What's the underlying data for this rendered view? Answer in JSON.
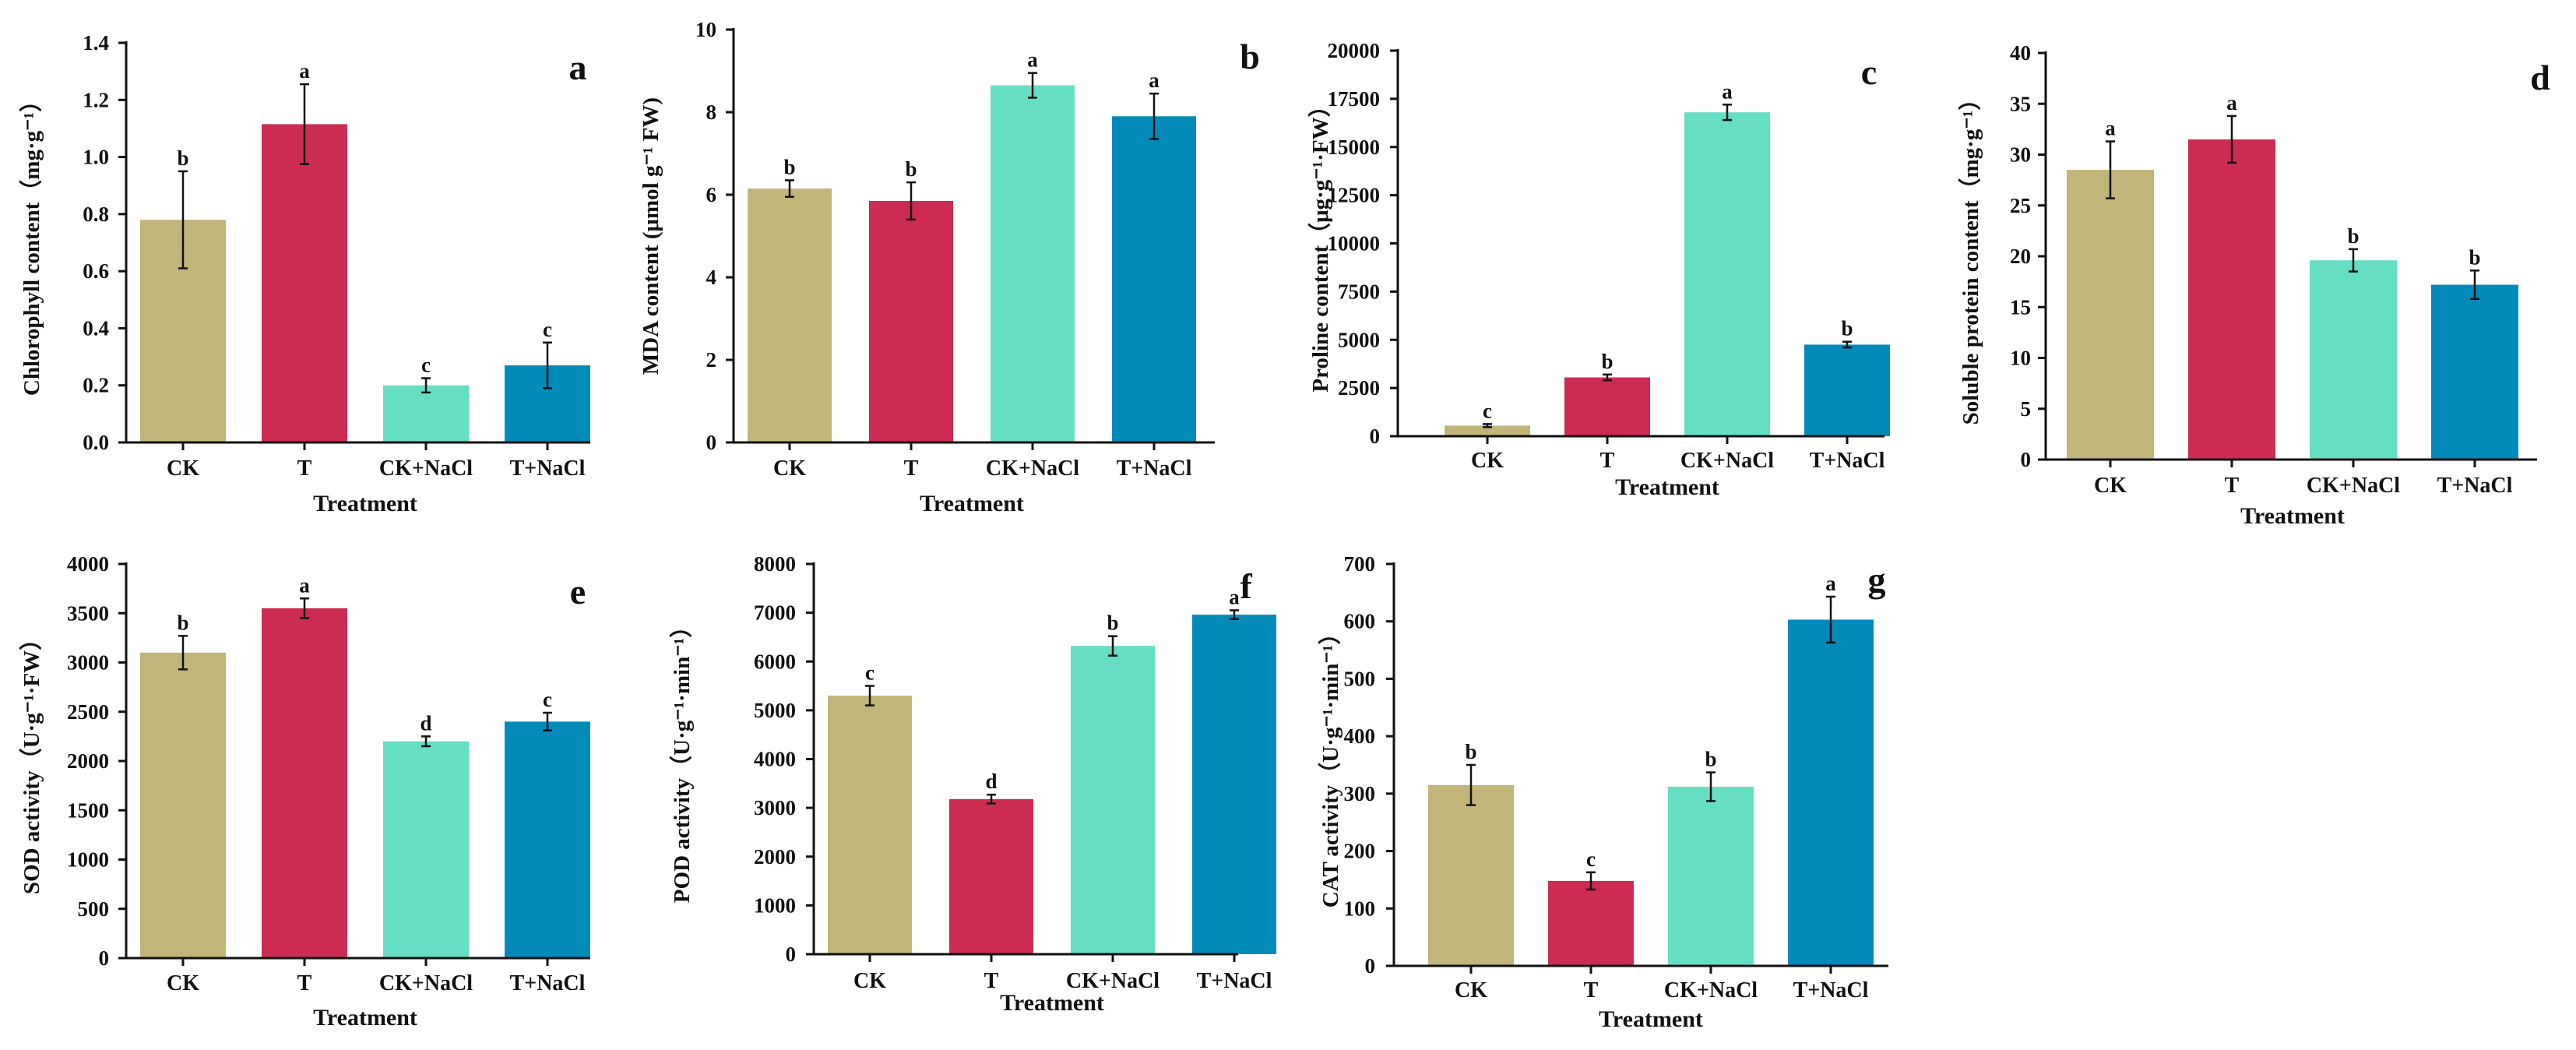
{
  "colors": {
    "CK": "#c2b57a",
    "T": "#cc2b52",
    "CK+NaCl": "#66dec4",
    "T+NaCl": "#038ab9"
  },
  "chart_data": [
    {
      "id": "a",
      "type": "bar",
      "panel_label": "a",
      "categories": [
        "CK",
        "T",
        "CK+NaCl",
        "T+NaCl"
      ],
      "values": [
        0.78,
        1.115,
        0.2,
        0.27
      ],
      "errors": [
        0.17,
        0.14,
        0.025,
        0.08
      ],
      "letters": [
        "b",
        "a",
        "c",
        "c"
      ],
      "xlabel": "Treatment",
      "ylabel": "Chlorophyll content（mg·g⁻¹）",
      "ylim": [
        0,
        1.4
      ],
      "yticks": [
        "0.0",
        "0.2",
        "0.4",
        "0.6",
        "0.8",
        "1.0",
        "1.2",
        "1.4"
      ]
    },
    {
      "id": "b",
      "type": "bar",
      "panel_label": "b",
      "categories": [
        "CK",
        "T",
        "CK+NaCl",
        "T+NaCl"
      ],
      "values": [
        6.15,
        5.85,
        8.65,
        7.9
      ],
      "errors": [
        0.2,
        0.45,
        0.3,
        0.55
      ],
      "letters": [
        "b",
        "b",
        "a",
        "a"
      ],
      "xlabel": "Treatment",
      "ylabel": "MDA content (μmol g⁻¹ FW)",
      "ylim": [
        0,
        10
      ],
      "yticks": [
        "0",
        "2",
        "4",
        "6",
        "8",
        "10"
      ]
    },
    {
      "id": "c",
      "type": "bar",
      "panel_label": "c",
      "categories": [
        "CK",
        "T",
        "CK+NaCl",
        "T+NaCl"
      ],
      "values": [
        550,
        3050,
        16800,
        4750
      ],
      "errors": [
        80,
        150,
        400,
        150
      ],
      "letters": [
        "c",
        "b",
        "a",
        "b"
      ],
      "xlabel": "Treatment",
      "ylabel": "Proline content（μg·g⁻¹·FW）",
      "ylim": [
        0,
        20000
      ],
      "yticks": [
        "0",
        "2500",
        "5000",
        "7500",
        "10000",
        "12500",
        "15000",
        "17500",
        "20000"
      ]
    },
    {
      "id": "d",
      "type": "bar",
      "panel_label": "d",
      "categories": [
        "CK",
        "T",
        "CK+NaCl",
        "T+NaCl"
      ],
      "values": [
        28.5,
        31.5,
        19.6,
        17.2
      ],
      "errors": [
        2.8,
        2.3,
        1.1,
        1.4
      ],
      "letters": [
        "a",
        "a",
        "b",
        "b"
      ],
      "xlabel": "Treatment",
      "ylabel": "Soluble protein content（mg·g⁻¹）",
      "ylim": [
        0,
        40
      ],
      "yticks": [
        "0",
        "5",
        "10",
        "15",
        "20",
        "25",
        "30",
        "35",
        "40"
      ]
    },
    {
      "id": "e",
      "type": "bar",
      "panel_label": "e",
      "categories": [
        "CK",
        "T",
        "CK+NaCl",
        "T+NaCl"
      ],
      "values": [
        3100,
        3550,
        2200,
        2400
      ],
      "errors": [
        170,
        100,
        50,
        90
      ],
      "letters": [
        "b",
        "a",
        "d",
        "c"
      ],
      "xlabel": "Treatment",
      "ylabel": "SOD activity（U·g⁻¹·FW）",
      "ylim": [
        0,
        4000
      ],
      "yticks": [
        "0",
        "500",
        "1000",
        "1500",
        "2000",
        "2500",
        "3000",
        "3500",
        "4000"
      ]
    },
    {
      "id": "f",
      "type": "bar",
      "panel_label": "f",
      "categories": [
        "CK",
        "T",
        "CK+NaCl",
        "T+NaCl"
      ],
      "values": [
        5300,
        3180,
        6320,
        6960
      ],
      "errors": [
        200,
        90,
        200,
        90
      ],
      "letters": [
        "c",
        "d",
        "b",
        "a"
      ],
      "xlabel": "Treatment",
      "ylabel": "POD activity（U·g⁻¹·min⁻¹）",
      "ylim": [
        0,
        8000
      ],
      "yticks": [
        "0",
        "1000",
        "2000",
        "3000",
        "4000",
        "5000",
        "6000",
        "7000",
        "8000"
      ]
    },
    {
      "id": "g",
      "type": "bar",
      "panel_label": "g",
      "categories": [
        "CK",
        "T",
        "CK+NaCl",
        "T+NaCl"
      ],
      "values": [
        315,
        148,
        312,
        603
      ],
      "errors": [
        35,
        15,
        25,
        40
      ],
      "letters": [
        "b",
        "c",
        "b",
        "a"
      ],
      "xlabel": "Treatment",
      "ylabel": "CAT activity（U·g⁻¹·min⁻¹）",
      "ylim": [
        0,
        700
      ],
      "yticks": [
        "0",
        "100",
        "200",
        "300",
        "400",
        "500",
        "600",
        "700"
      ]
    }
  ]
}
